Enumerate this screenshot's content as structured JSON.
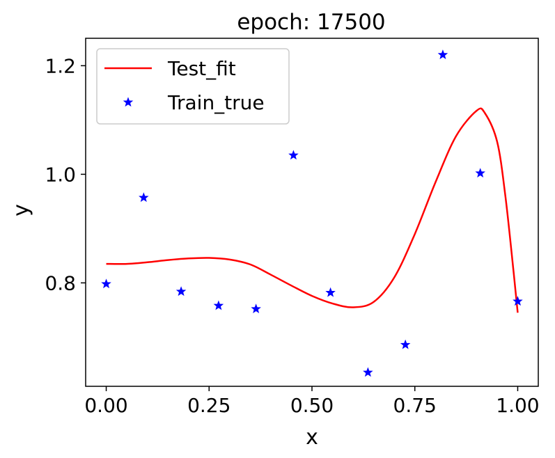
{
  "chart_data": {
    "type": "line",
    "title": "epoch: 17500",
    "xlabel": "x",
    "ylabel": "y",
    "xlim": [
      -0.05,
      1.05
    ],
    "ylim": [
      0.6095,
      1.2505
    ],
    "xticks": [
      0.0,
      0.25,
      0.5,
      0.75,
      1.0
    ],
    "xtick_labels": [
      "0.00",
      "0.25",
      "0.50",
      "0.75",
      "1.00"
    ],
    "yticks": [
      0.8,
      1.0,
      1.2
    ],
    "ytick_labels": [
      "0.8",
      "1.0",
      "1.2"
    ],
    "grid": false,
    "legend": {
      "placement": "top-left",
      "entries": [
        {
          "label": "Test_fit",
          "marker": "line",
          "color": "#ff0000"
        },
        {
          "label": "Train_true",
          "marker": "star",
          "color": "#0000ff"
        }
      ]
    },
    "series": [
      {
        "name": "Test_fit",
        "kind": "line",
        "color": "#ff0000",
        "x": [
          0.0,
          0.05,
          0.1,
          0.15,
          0.2,
          0.25,
          0.3,
          0.35,
          0.4,
          0.45,
          0.5,
          0.55,
          0.6,
          0.65,
          0.7,
          0.75,
          0.8,
          0.85,
          0.9,
          0.92,
          0.95,
          0.97,
          0.99,
          1.0
        ],
        "y": [
          0.835,
          0.835,
          0.838,
          0.842,
          0.845,
          0.846,
          0.843,
          0.834,
          0.815,
          0.795,
          0.776,
          0.762,
          0.755,
          0.765,
          0.81,
          0.89,
          0.985,
          1.07,
          1.117,
          1.113,
          1.06,
          0.96,
          0.82,
          0.745
        ]
      },
      {
        "name": "Train_true",
        "kind": "scatter",
        "color": "#0000ff",
        "x": [
          0.0,
          0.091,
          0.182,
          0.273,
          0.364,
          0.455,
          0.545,
          0.636,
          0.727,
          0.818,
          0.909,
          1.0
        ],
        "y": [
          0.798,
          0.957,
          0.784,
          0.758,
          0.752,
          1.035,
          0.782,
          0.635,
          0.686,
          1.22,
          1.002,
          0.766
        ]
      }
    ]
  }
}
